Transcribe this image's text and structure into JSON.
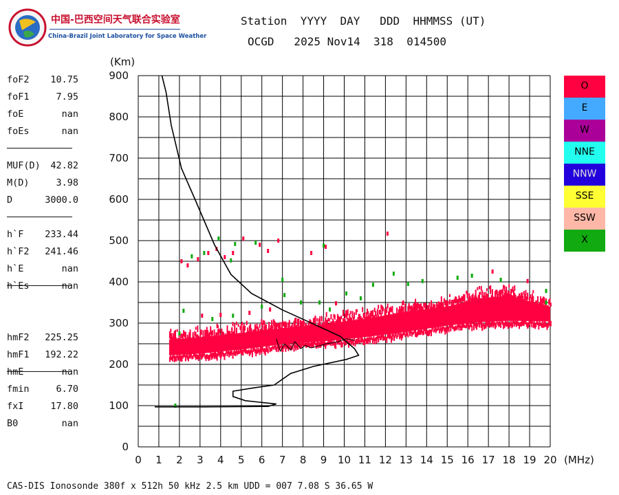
{
  "logo": {
    "cn_text": "中国-巴西空间天气联合实验室",
    "en_text": "China-Brazil Joint Laboratory for Space Weather"
  },
  "header": {
    "row1": "Station  YYYY  DAY   DDD  HHMMSS (UT)",
    "row2": "OCGD   2025 Nov14  318  014500"
  },
  "params": [
    {
      "name": "foF2",
      "value": "10.75"
    },
    {
      "name": "foF1",
      "value": "7.95"
    },
    {
      "name": "foE",
      "value": "nan"
    },
    {
      "name": "foEs",
      "value": "nan"
    },
    {
      "name": "MUF(D)",
      "value": "42.82"
    },
    {
      "name": "M(D)",
      "value": "3.98"
    },
    {
      "name": "D",
      "value": "3000.0"
    },
    {
      "name": "h`F",
      "value": "233.44"
    },
    {
      "name": "h`F2",
      "value": "241.46"
    },
    {
      "name": "h`E",
      "value": "nan"
    },
    {
      "name": "h`Es",
      "value": "nan"
    },
    {
      "name": "hmF2",
      "value": "225.25"
    },
    {
      "name": "hmF1",
      "value": "192.22"
    },
    {
      "name": "hmE",
      "value": "nan"
    },
    {
      "name": "fmin",
      "value": "6.70"
    },
    {
      "name": "fxI",
      "value": "17.80"
    },
    {
      "name": "B0",
      "value": "nan"
    }
  ],
  "legend": [
    {
      "label": "O",
      "color": "#ff0040"
    },
    {
      "label": "E",
      "color": "#44aaff"
    },
    {
      "label": "W",
      "color": "#aa0099"
    },
    {
      "label": "NNE",
      "color": "#22ffee"
    },
    {
      "label": "NNW",
      "color": "#2200dd"
    },
    {
      "label": "SSE",
      "color": "#ffff33"
    },
    {
      "label": "SSW",
      "color": "#ffb8a8"
    },
    {
      "label": "X",
      "color": "#11aa11"
    }
  ],
  "footer": "CAS-DIS Ionosonde 380f x 512h 50 kHz 2.5 km UDD = 007 7.08 S 36.65 W",
  "chart_data": {
    "type": "scatter",
    "xlabel": "(MHz)",
    "ylabel": "(Km)",
    "xlim": [
      0,
      20
    ],
    "ylim": [
      0,
      900
    ],
    "x_ticks": [
      0,
      1,
      2,
      3,
      4,
      5,
      6,
      7,
      8,
      9,
      10,
      11,
      12,
      13,
      14,
      15,
      16,
      17,
      18,
      19,
      20
    ],
    "y_ticks": [
      0,
      100,
      200,
      300,
      400,
      500,
      600,
      700,
      800,
      900
    ],
    "grid": true,
    "series": [
      {
        "kind": "trace-band",
        "color": "#ff0040",
        "band": [
          [
            1.5,
            218,
            272
          ],
          [
            3,
            222,
            278
          ],
          [
            5,
            232,
            288
          ],
          [
            7,
            245,
            300
          ],
          [
            9,
            252,
            310
          ],
          [
            11,
            262,
            322
          ],
          [
            13,
            275,
            340
          ],
          [
            15,
            290,
            352
          ],
          [
            16.5,
            298,
            372
          ],
          [
            18,
            302,
            378
          ],
          [
            20,
            300,
            352
          ]
        ]
      },
      {
        "kind": "trace-points",
        "color": "#ff0040",
        "points": [
          [
            2.1,
            450
          ],
          [
            2.4,
            440
          ],
          [
            2.9,
            455
          ],
          [
            3.4,
            470
          ],
          [
            3.8,
            480
          ],
          [
            4.2,
            460
          ],
          [
            4.6,
            470
          ],
          [
            5.1,
            505
          ],
          [
            5.9,
            490
          ],
          [
            6.3,
            475
          ],
          [
            6.8,
            500
          ],
          [
            8.4,
            470
          ],
          [
            9.1,
            485
          ],
          [
            12.1,
            517
          ],
          [
            17.2,
            425
          ],
          [
            18.9,
            402
          ],
          [
            5.4,
            325
          ],
          [
            4.0,
            320
          ],
          [
            3.1,
            318
          ],
          [
            6.4,
            333
          ],
          [
            9.6,
            348
          ]
        ]
      },
      {
        "kind": "trace-points",
        "color": "#11aa11",
        "points": [
          [
            1.8,
            100
          ],
          [
            2.2,
            330
          ],
          [
            2.6,
            462
          ],
          [
            3.2,
            470
          ],
          [
            3.9,
            505
          ],
          [
            4.5,
            452
          ],
          [
            4.7,
            492
          ],
          [
            5.7,
            495
          ],
          [
            7.1,
            368
          ],
          [
            7.9,
            350
          ],
          [
            8.8,
            350
          ],
          [
            9.3,
            333
          ],
          [
            10.1,
            372
          ],
          [
            11.4,
            393
          ],
          [
            12.4,
            420
          ],
          [
            13.8,
            402
          ],
          [
            15.5,
            410
          ],
          [
            16.2,
            415
          ],
          [
            17.6,
            405
          ],
          [
            19.8,
            350
          ],
          [
            19.8,
            378
          ],
          [
            6.0,
            340
          ],
          [
            10.8,
            360
          ],
          [
            7.0,
            405
          ],
          [
            9.0,
            488
          ],
          [
            2.0,
            275
          ],
          [
            3.6,
            310
          ],
          [
            4.6,
            318
          ],
          [
            13.1,
            395
          ]
        ]
      },
      {
        "kind": "profile-line",
        "color": "#000000",
        "points": [
          [
            0.8,
            97
          ],
          [
            3.2,
            97
          ],
          [
            6.3,
            98
          ],
          [
            6.7,
            104
          ],
          [
            5.2,
            112
          ],
          [
            4.6,
            122
          ],
          [
            4.6,
            135
          ],
          [
            5.6,
            143
          ],
          [
            6.6,
            150
          ],
          [
            7.4,
            178
          ],
          [
            8.5,
            195
          ],
          [
            10.1,
            212
          ],
          [
            10.7,
            222
          ],
          [
            10.5,
            238
          ],
          [
            9.8,
            268
          ],
          [
            8.5,
            298
          ],
          [
            7.0,
            332
          ],
          [
            5.5,
            372
          ],
          [
            4.5,
            418
          ],
          [
            3.7,
            490
          ],
          [
            2.8,
            595
          ],
          [
            2.1,
            675
          ],
          [
            1.6,
            780
          ],
          [
            1.35,
            860
          ],
          [
            1.15,
            900
          ]
        ]
      },
      {
        "kind": "fit-line",
        "color": "#000000",
        "points": [
          [
            6.7,
            262
          ],
          [
            6.9,
            232
          ],
          [
            7.1,
            250
          ],
          [
            7.4,
            235
          ],
          [
            7.6,
            255
          ],
          [
            7.9,
            238
          ],
          [
            8.1,
            246
          ],
          [
            8.4,
            240
          ],
          [
            8.8,
            245
          ],
          [
            9.1,
            250
          ],
          [
            9.4,
            252
          ],
          [
            9.7,
            255
          ],
          [
            10.1,
            262
          ],
          [
            10.5,
            258
          ]
        ]
      }
    ]
  }
}
